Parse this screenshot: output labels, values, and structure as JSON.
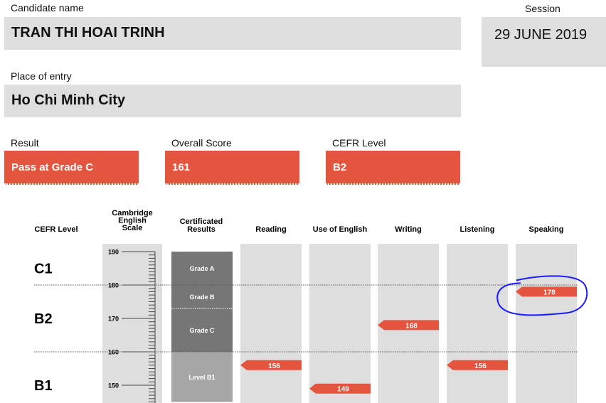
{
  "candidate": {
    "name_label": "Candidate name",
    "name": "TRAN THI HOAI TRINH",
    "place_label": "Place of entry",
    "place": "Ho Chi Minh City"
  },
  "session": {
    "label": "Session",
    "date": "29 JUNE 2019"
  },
  "result": {
    "label": "Result",
    "value": "Pass at Grade C"
  },
  "overall": {
    "label": "Overall Score",
    "value": "161"
  },
  "cefr": {
    "label": "CEFR Level",
    "value": "B2"
  },
  "colors": {
    "accent": "#e3553e",
    "panel": "#dedede",
    "grade_dark": "#767676",
    "grade_light": "#a6a6a6",
    "annotation": "#1a1aff"
  },
  "chart_data": {
    "type": "bar",
    "headers": {
      "cefr": "CEFR Level",
      "scale": "Cambridge English Scale",
      "certificated": "Certificated Results"
    },
    "scale_ticks": [
      190,
      180,
      170,
      160,
      150
    ],
    "ylim": [
      145,
      192
    ],
    "cefr_levels": [
      {
        "label": "C1",
        "score": 185
      },
      {
        "label": "B2",
        "score": 170
      },
      {
        "label": "B1",
        "score": 150
      }
    ],
    "level_boundaries": [
      180,
      160
    ],
    "certificated_bands": [
      {
        "label": "Grade A",
        "from": 190,
        "to": 180,
        "shade": "dark"
      },
      {
        "label": "Grade B",
        "from": 180,
        "to": 173,
        "shade": "dark"
      },
      {
        "label": "Grade C",
        "from": 173,
        "to": 160,
        "shade": "dark"
      },
      {
        "label": "Level B1",
        "from": 160,
        "to": 145,
        "shade": "light"
      }
    ],
    "categories": [
      "Reading",
      "Use of English",
      "Writing",
      "Listening",
      "Speaking"
    ],
    "values": [
      156,
      149,
      168,
      156,
      178
    ],
    "highlighted": "Speaking"
  }
}
